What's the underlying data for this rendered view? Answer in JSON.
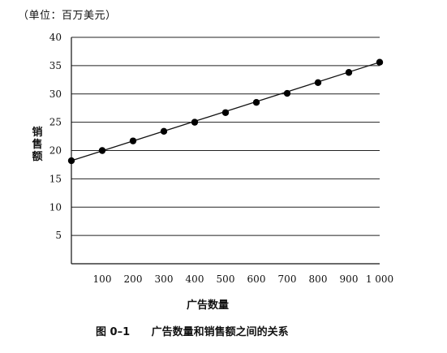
{
  "unit_note": "（单位：百万美元）",
  "caption": {
    "number": "图 0–1",
    "text": "广告数量和销售额之间的关系"
  },
  "chart_data": {
    "type": "scatter",
    "title": "",
    "xlabel": "广告数量",
    "ylabel": "销售额",
    "x_tick_labels": [
      "100",
      "200",
      "300",
      "400",
      "500",
      "600",
      "700",
      "800",
      "900",
      "1 000"
    ],
    "x_ticks": [
      100,
      200,
      300,
      400,
      500,
      600,
      700,
      800,
      900,
      1000
    ],
    "y_ticks": [
      5,
      10,
      15,
      20,
      25,
      30,
      35,
      40
    ],
    "y_tick_labels": [
      "5",
      "10",
      "15",
      "20",
      "25",
      "30",
      "35",
      "40"
    ],
    "xlim": [
      0,
      1000
    ],
    "ylim": [
      0,
      40
    ],
    "grid": "horizontal",
    "trend_line": {
      "x": [
        0,
        1000
      ],
      "y": [
        18.2,
        35.6
      ]
    },
    "points": {
      "x": [
        0,
        100,
        200,
        300,
        400,
        500,
        600,
        700,
        800,
        900,
        1000
      ],
      "y": [
        18.2,
        20.0,
        21.7,
        23.4,
        25.0,
        26.7,
        28.5,
        30.1,
        32.0,
        33.8,
        35.6
      ]
    }
  }
}
